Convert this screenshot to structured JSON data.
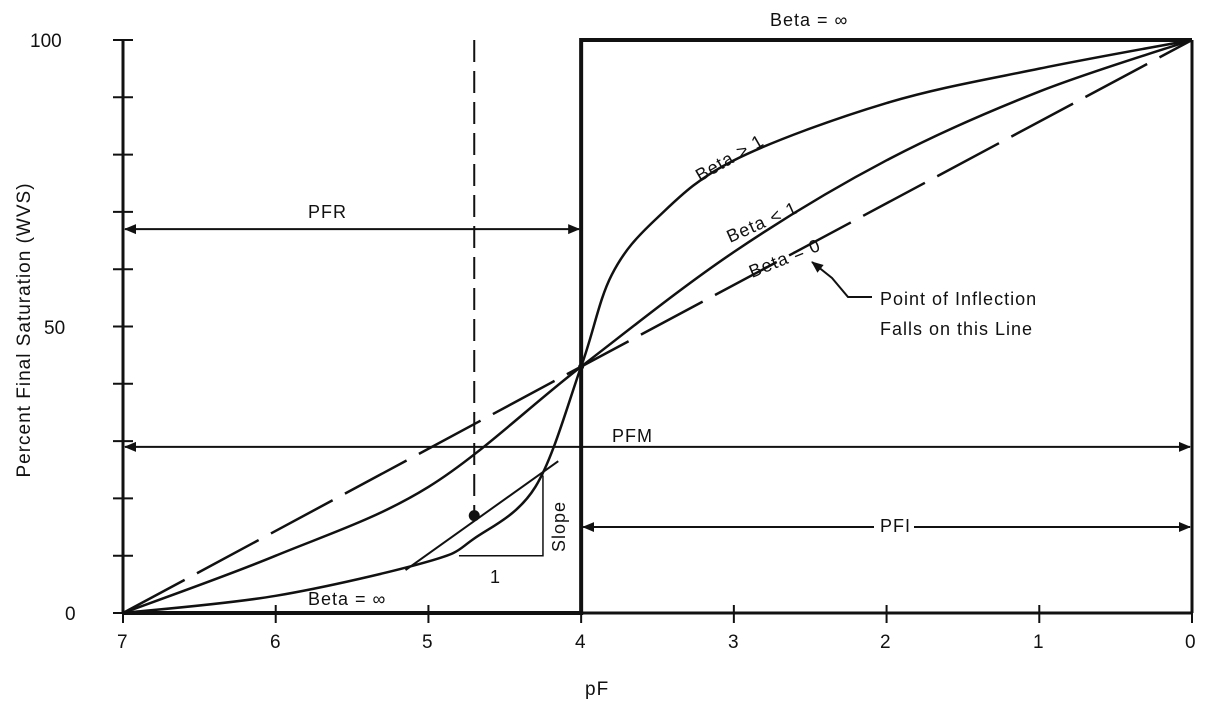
{
  "chart_data": {
    "type": "line",
    "xlabel": "pF",
    "ylabel": "Percent Final Saturation (WVS)",
    "xlim": [
      7,
      0
    ],
    "ylim": [
      0,
      100
    ],
    "x_ticks": [
      "7",
      "6",
      "5",
      "4",
      "3",
      "2",
      "1",
      "0"
    ],
    "y_ticks": [
      "0",
      "50",
      "100"
    ],
    "series": [
      {
        "name": "Beta = ∞",
        "points": [
          [
            7,
            0
          ],
          [
            4,
            0
          ],
          [
            4,
            100
          ],
          [
            0,
            100
          ]
        ]
      },
      {
        "name": "Beta > 1",
        "points": [
          [
            7,
            0
          ],
          [
            6,
            3
          ],
          [
            5,
            9
          ],
          [
            4.7,
            13
          ],
          [
            4.3,
            22
          ],
          [
            4,
            43
          ],
          [
            3.8,
            59
          ],
          [
            3.5,
            69
          ],
          [
            3,
            79
          ],
          [
            2,
            89
          ],
          [
            1,
            95
          ],
          [
            0,
            100
          ]
        ]
      },
      {
        "name": "Beta < 1",
        "points": [
          [
            7,
            0
          ],
          [
            6,
            10
          ],
          [
            5,
            22
          ],
          [
            4,
            43
          ],
          [
            3,
            63
          ],
          [
            2,
            79
          ],
          [
            1,
            91
          ],
          [
            0,
            100
          ]
        ]
      },
      {
        "name": "Beta = 0",
        "points": [
          [
            7,
            0
          ],
          [
            4,
            43
          ],
          [
            0,
            100
          ]
        ]
      }
    ],
    "annotations": {
      "pfr": "PFR",
      "pfm": "PFM",
      "pfi": "PFI",
      "beta_inf_top": "Beta = ∞",
      "beta_inf_bottom": "Beta = ∞",
      "beta_gt1": "Beta > 1",
      "beta_lt1": "Beta < 1",
      "beta_0": "Beta = 0",
      "inflection_line1": "Point of Inflection",
      "inflection_line2": "Falls on this Line",
      "slope": "Slope",
      "one": "1"
    },
    "markers": {
      "inflection_point": [
        4.7,
        17
      ],
      "center_point": [
        4,
        43
      ],
      "pfr_line_y": 67,
      "pfm_line_y": 29,
      "pfi_line_y": 15,
      "dashed_x": 4.7
    },
    "grid": false
  }
}
